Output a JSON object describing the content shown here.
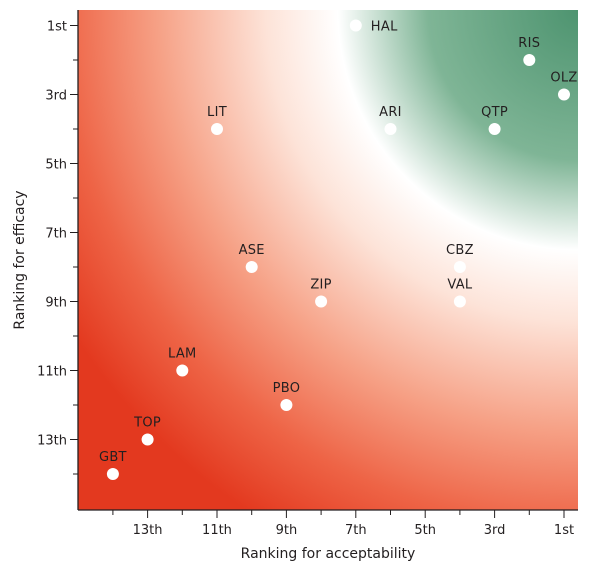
{
  "chart_data": {
    "type": "scatter",
    "title": "",
    "xlabel": "Ranking for acceptability",
    "ylabel": "Ranking for efficacy",
    "x_reversed": true,
    "y_reversed": true,
    "xlim": [
      15,
      0.5
    ],
    "ylim": [
      15,
      0.5
    ],
    "x_ticks": [
      {
        "value": 13,
        "label": "13th"
      },
      {
        "value": 11,
        "label": "11th"
      },
      {
        "value": 9,
        "label": "9th"
      },
      {
        "value": 7,
        "label": "7th"
      },
      {
        "value": 5,
        "label": "5th"
      },
      {
        "value": 3,
        "label": "3rd"
      },
      {
        "value": 1,
        "label": "1st"
      }
    ],
    "y_ticks": [
      {
        "value": 1,
        "label": "1st"
      },
      {
        "value": 3,
        "label": "3rd"
      },
      {
        "value": 5,
        "label": "5th"
      },
      {
        "value": 7,
        "label": "7th"
      },
      {
        "value": 9,
        "label": "9th"
      },
      {
        "value": 11,
        "label": "11th"
      },
      {
        "value": 13,
        "label": "13th"
      }
    ],
    "grid": false,
    "legend": "none",
    "background": "radial gradient: green at top-right (best) to red at bottom-left (worst)",
    "colors": {
      "best": "#5a9a78",
      "mid": "#ffffff",
      "worst": "#e8402a",
      "point": "#ffffff",
      "axis": "#231f20"
    },
    "points": [
      {
        "name": "HAL",
        "x": 7,
        "y": 1
      },
      {
        "name": "RIS",
        "x": 2,
        "y": 2
      },
      {
        "name": "OLZ",
        "x": 1,
        "y": 3
      },
      {
        "name": "LIT",
        "x": 11,
        "y": 4
      },
      {
        "name": "ARI",
        "x": 6,
        "y": 4
      },
      {
        "name": "QTP",
        "x": 3,
        "y": 4
      },
      {
        "name": "ASE",
        "x": 10,
        "y": 8
      },
      {
        "name": "CBZ",
        "x": 4,
        "y": 8
      },
      {
        "name": "ZIP",
        "x": 8,
        "y": 9
      },
      {
        "name": "VAL",
        "x": 4,
        "y": 9
      },
      {
        "name": "LAM",
        "x": 12,
        "y": 11
      },
      {
        "name": "PBO",
        "x": 9,
        "y": 12
      },
      {
        "name": "TOP",
        "x": 13,
        "y": 13
      },
      {
        "name": "GBT",
        "x": 14,
        "y": 14
      }
    ]
  }
}
